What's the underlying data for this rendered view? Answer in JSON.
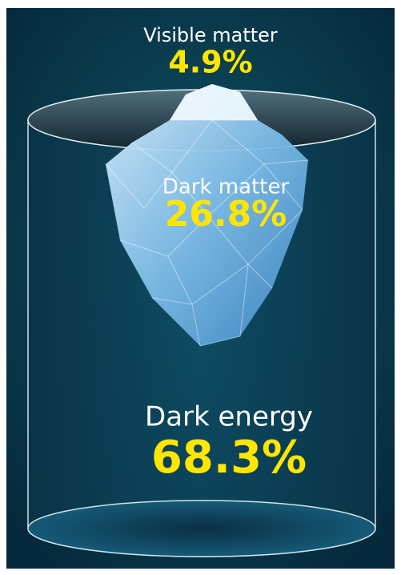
{
  "items": [
    {
      "label": "Visible matter",
      "value": "4.9%"
    },
    {
      "label": "Dark matter",
      "value": "26.8%"
    },
    {
      "label": "Dark energy",
      "value": "68.3%"
    }
  ]
}
